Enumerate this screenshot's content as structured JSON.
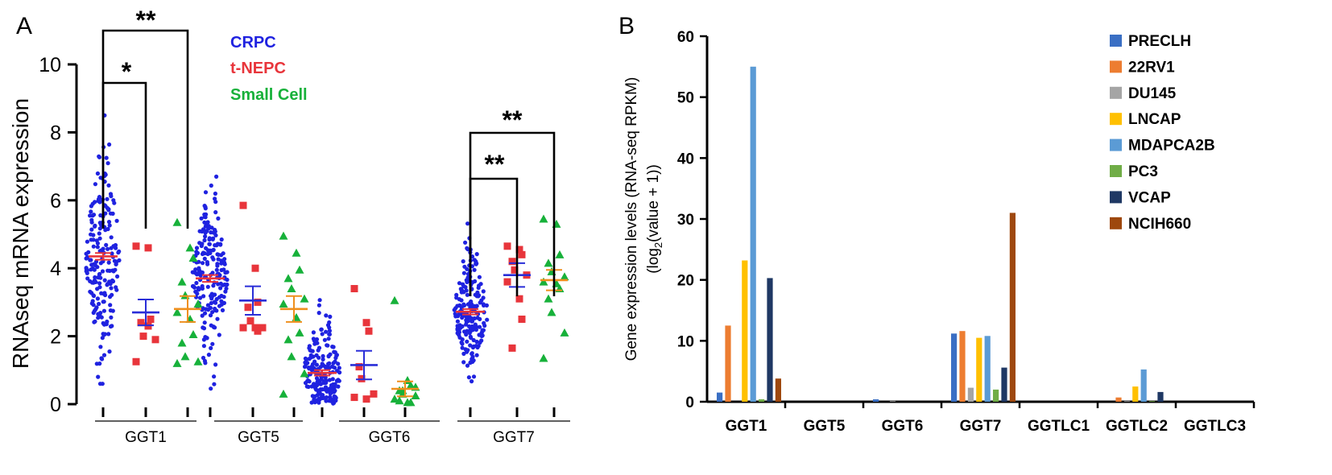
{
  "chart_data": [
    {
      "panel_label": "A",
      "type": "scatter",
      "ylabel": "RNAseq mRNA expression",
      "ylim": [
        0,
        10
      ],
      "yticks": [
        "0",
        "2",
        "4",
        "6",
        "8",
        "10"
      ],
      "groups": [
        "GGT1",
        "GGT5",
        "GGT6",
        "GGT7"
      ],
      "legend": [
        {
          "name": "CRPC",
          "color": "#1f22e0"
        },
        {
          "name": "t-NEPC",
          "color": "#e8353b"
        },
        {
          "name": "Small Cell",
          "color": "#17b13a"
        }
      ],
      "means": {
        "GGT1": {
          "CRPC": 4.35,
          "t-NEPC": 2.7,
          "Small Cell": 2.8
        },
        "GGT5": {
          "CRPC": 3.7,
          "t-NEPC": 3.05,
          "Small Cell": 2.8
        },
        "GGT6": {
          "CRPC": 0.92,
          "t-NEPC": 1.15,
          "Small Cell": 0.45
        },
        "GGT7": {
          "CRPC": 2.72,
          "t-NEPC": 3.8,
          "Small Cell": 3.65
        }
      },
      "sem": {
        "GGT1": {
          "CRPC": 0.1,
          "t-NEPC": 0.38,
          "Small Cell": 0.38
        },
        "GGT5": {
          "CRPC": 0.1,
          "t-NEPC": 0.42,
          "Small Cell": 0.38
        },
        "GGT6": {
          "CRPC": 0.08,
          "t-NEPC": 0.42,
          "Small Cell": 0.22
        },
        "GGT7": {
          "CRPC": 0.08,
          "t-NEPC": 0.35,
          "Small Cell": 0.3
        }
      },
      "points": {
        "GGT1": {
          "t-NEPC": [
            4.65,
            4.6,
            2.5,
            2.4,
            2.0,
            1.9,
            1.25,
            2.3
          ],
          "Small Cell": [
            5.35,
            4.6,
            4.3,
            3.6,
            3.2,
            2.95,
            2.7,
            2.5,
            2.05,
            1.8,
            1.4,
            1.25,
            1.2
          ]
        },
        "GGT5": {
          "t-NEPC": [
            5.85,
            4.0,
            3.0,
            2.85,
            2.45,
            2.25,
            2.25,
            2.25,
            2.15
          ],
          "Small Cell": [
            4.95,
            4.45,
            3.95,
            3.7,
            3.4,
            3.1,
            2.95,
            2.55,
            2.1,
            1.9,
            1.4,
            0.9,
            0.3
          ]
        },
        "GGT6": {
          "t-NEPC": [
            3.4,
            2.4,
            2.15,
            1.1,
            0.75,
            0.3,
            0.2,
            0.15
          ],
          "Small Cell": [
            3.05,
            0.7,
            0.55,
            0.4,
            0.3,
            0.25,
            0.15,
            0.05,
            0.05,
            0.1,
            0.4,
            0.5
          ]
        },
        "GGT7": {
          "t-NEPC": [
            4.65,
            4.55,
            4.4,
            4.2,
            3.95,
            3.8,
            3.6,
            3.1,
            2.5,
            1.65
          ],
          "Small Cell": [
            5.45,
            5.3,
            4.4,
            4.15,
            3.9,
            3.75,
            3.6,
            3.55,
            3.4,
            3.1,
            2.7,
            2.1,
            1.35
          ]
        }
      },
      "significance": [
        {
          "label": "*",
          "group": "GGT1",
          "from": "CRPC",
          "to": "t-NEPC"
        },
        {
          "label": "**",
          "group": "GGT1",
          "from": "CRPC",
          "to": "Small Cell"
        },
        {
          "label": "**",
          "group": "GGT7",
          "from": "CRPC",
          "to": "t-NEPC"
        },
        {
          "label": "**",
          "group": "GGT7",
          "from": "CRPC",
          "to": "Small Cell"
        }
      ]
    },
    {
      "panel_label": "B",
      "type": "bar",
      "ylabel_line1": "Gene expression levels (RNA-seq RPKM)",
      "ylabel_line2_pre": "(log",
      "ylabel_line2_sub": "2",
      "ylabel_line2_post": "(value + 1))",
      "ylim": [
        0,
        60
      ],
      "yticks": [
        "0",
        "10",
        "20",
        "30",
        "40",
        "50",
        "60"
      ],
      "categories": [
        "GGT1",
        "GGT5",
        "GGT6",
        "GGT7",
        "GGTLC1",
        "GGTLC2",
        "GGTLC3"
      ],
      "series": [
        {
          "name": "PRECLH",
          "color": "#3a6fc4",
          "values": [
            1.5,
            0,
            0.4,
            11.2,
            0,
            0,
            0
          ]
        },
        {
          "name": "22RV1",
          "color": "#ed7d31",
          "values": [
            12.5,
            0,
            0,
            11.6,
            0,
            0.7,
            0
          ]
        },
        {
          "name": "DU145",
          "color": "#a5a5a5",
          "values": [
            0,
            0,
            0.1,
            2.3,
            0,
            0.1,
            0
          ]
        },
        {
          "name": "LNCAP",
          "color": "#ffc000",
          "values": [
            23.2,
            0,
            0,
            10.5,
            0,
            2.5,
            0
          ]
        },
        {
          "name": "MDAPCA2B",
          "color": "#5b9bd5",
          "values": [
            55.0,
            0,
            0,
            10.8,
            0,
            5.3,
            0
          ]
        },
        {
          "name": "PC3",
          "color": "#70ad47",
          "values": [
            0.4,
            0,
            0,
            2.0,
            0,
            0.1,
            0
          ]
        },
        {
          "name": "VCAP",
          "color": "#1f3864",
          "values": [
            20.3,
            0,
            0,
            5.6,
            0,
            1.6,
            0
          ]
        },
        {
          "name": "NCIH660",
          "color": "#9e480e",
          "values": [
            3.8,
            0,
            0,
            31.0,
            0,
            0,
            0
          ]
        }
      ]
    }
  ]
}
